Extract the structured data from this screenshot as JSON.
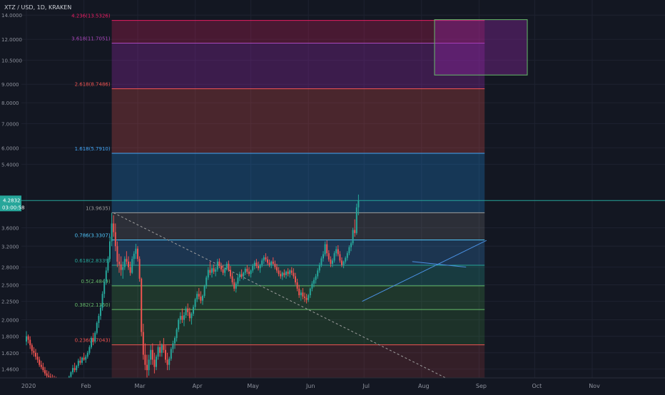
{
  "header": {
    "symbol": "XTZ / USD, 1D, KRAKEN"
  },
  "colors": {
    "background": "#131722",
    "grid": "#1e2230",
    "axis_text": "#8e929d",
    "up": "#26a69a",
    "down": "#ef5350",
    "price_line": "#26a69a"
  },
  "price_badge": {
    "price": "4.2832",
    "countdown": "03:00:58"
  },
  "chart_data": {
    "type": "candlestick",
    "scale": "log",
    "ylim": [
      1.38,
      14.6
    ],
    "y_ticks": [
      "14.0000",
      "12.0000",
      "10.5000",
      "9.0000",
      "8.0000",
      "7.0000",
      "6.0000",
      "5.4000",
      "3.6000",
      "3.2000",
      "2.8000",
      "2.5000",
      "2.2500",
      "2.0000",
      "1.8000",
      "1.6200",
      "1.4600"
    ],
    "x_labels": [
      {
        "label": "2020",
        "day": 0
      },
      {
        "label": "Feb",
        "day": 31
      },
      {
        "label": "Mar",
        "day": 60
      },
      {
        "label": "Apr",
        "day": 91
      },
      {
        "label": "May",
        "day": 121
      },
      {
        "label": "Jun",
        "day": 152
      },
      {
        "label": "Jul",
        "day": 182
      },
      {
        "label": "Aug",
        "day": 213
      },
      {
        "label": "Sep",
        "day": 244
      },
      {
        "label": "Oct",
        "day": 274
      },
      {
        "label": "Nov",
        "day": 305
      }
    ],
    "current_price": 4.2832,
    "fibonacci": {
      "levels": [
        {
          "label": "0.236(1.7043)",
          "ratio": 0.236,
          "price": 1.7043,
          "color": "#ef5350"
        },
        {
          "label": "0.382(2.1360)",
          "ratio": 0.382,
          "price": 2.136,
          "color": "#66bb6a"
        },
        {
          "label": "0.5(2.4849)",
          "ratio": 0.5,
          "price": 2.4849,
          "color": "#66bb6a"
        },
        {
          "label": "0.618(2.8339)",
          "ratio": 0.618,
          "price": 2.8339,
          "color": "#26a69a"
        },
        {
          "label": "0.786(3.3307)",
          "ratio": 0.786,
          "price": 3.3307,
          "color": "#4fc3f7"
        },
        {
          "label": "1(3.9635)",
          "ratio": 1,
          "price": 3.9635,
          "color": "#9e9e9e"
        },
        {
          "label": "1.618(5.7910)",
          "ratio": 1.618,
          "price": 5.791,
          "color": "#42a5f5"
        },
        {
          "label": "2.618(8.7486)",
          "ratio": 2.618,
          "price": 8.7486,
          "color": "#ef5350"
        },
        {
          "label": "3.618(11.7051)",
          "ratio": 3.618,
          "price": 11.7051,
          "color": "#ab47bc"
        },
        {
          "label": "4.236(13.5326)",
          "ratio": 4.236,
          "price": 13.5326,
          "color": "#e91e63"
        }
      ],
      "start_day": 46,
      "end_day": 247
    },
    "target_box": {
      "day_start": 220,
      "day_end": 270,
      "price_top": 13.6,
      "price_bottom": 9.55
    },
    "trendlines": [
      {
        "from": [
          47,
          3.96
        ],
        "to": [
          226,
          1.38
        ],
        "style": "dashed"
      },
      {
        "from": [
          181,
          2.25
        ],
        "to": [
          248,
          3.32
        ],
        "style": "solid"
      },
      {
        "from": [
          208,
          2.9
        ],
        "to": [
          237,
          2.8
        ],
        "style": "solid"
      }
    ],
    "candles": [
      [
        1.74,
        1.86,
        1.7,
        1.8
      ],
      [
        1.8,
        1.82,
        1.72,
        1.76
      ],
      [
        1.76,
        1.8,
        1.66,
        1.7
      ],
      [
        1.7,
        1.72,
        1.6,
        1.64
      ],
      [
        1.64,
        1.68,
        1.58,
        1.62
      ],
      [
        1.62,
        1.66,
        1.55,
        1.58
      ],
      [
        1.58,
        1.62,
        1.52,
        1.55
      ],
      [
        1.55,
        1.58,
        1.48,
        1.5
      ],
      [
        1.5,
        1.54,
        1.46,
        1.48
      ],
      [
        1.48,
        1.52,
        1.43,
        1.45
      ],
      [
        1.45,
        1.48,
        1.4,
        1.42
      ],
      [
        1.42,
        1.45,
        1.38,
        1.4
      ],
      [
        1.4,
        1.44,
        1.36,
        1.39
      ],
      [
        1.39,
        1.42,
        1.36,
        1.38
      ],
      [
        1.38,
        1.41,
        1.35,
        1.37
      ],
      [
        1.37,
        1.4,
        1.34,
        1.36
      ],
      [
        1.36,
        1.39,
        1.33,
        1.35
      ],
      [
        1.35,
        1.38,
        1.33,
        1.34
      ],
      [
        1.34,
        1.37,
        1.32,
        1.35
      ],
      [
        1.35,
        1.38,
        1.32,
        1.33
      ],
      [
        1.33,
        1.36,
        1.31,
        1.34
      ],
      [
        1.34,
        1.37,
        1.32,
        1.35
      ],
      [
        1.35,
        1.38,
        1.33,
        1.34
      ],
      [
        1.34,
        1.4,
        1.33,
        1.39
      ],
      [
        1.39,
        1.44,
        1.37,
        1.43
      ],
      [
        1.43,
        1.5,
        1.41,
        1.47
      ],
      [
        1.47,
        1.52,
        1.43,
        1.45
      ],
      [
        1.45,
        1.5,
        1.43,
        1.49
      ],
      [
        1.49,
        1.56,
        1.47,
        1.54
      ],
      [
        1.54,
        1.58,
        1.5,
        1.52
      ],
      [
        1.52,
        1.58,
        1.5,
        1.57
      ],
      [
        1.57,
        1.62,
        1.54,
        1.55
      ],
      [
        1.55,
        1.6,
        1.52,
        1.58
      ],
      [
        1.58,
        1.64,
        1.56,
        1.62
      ],
      [
        1.62,
        1.7,
        1.6,
        1.68
      ],
      [
        1.68,
        1.8,
        1.66,
        1.78
      ],
      [
        1.78,
        1.84,
        1.7,
        1.74
      ],
      [
        1.74,
        1.86,
        1.72,
        1.84
      ],
      [
        1.84,
        1.98,
        1.82,
        1.96
      ],
      [
        1.96,
        2.08,
        1.9,
        2.05
      ],
      [
        2.05,
        2.2,
        2.0,
        2.16
      ],
      [
        2.16,
        2.4,
        2.12,
        2.36
      ],
      [
        2.36,
        2.6,
        2.3,
        2.55
      ],
      [
        2.55,
        2.8,
        2.5,
        2.74
      ],
      [
        2.74,
        3.0,
        2.7,
        2.95
      ],
      [
        2.95,
        3.4,
        2.9,
        3.3
      ],
      [
        3.3,
        3.96,
        3.2,
        3.7
      ],
      [
        3.7,
        3.9,
        3.4,
        3.5
      ],
      [
        3.5,
        3.7,
        3.1,
        3.2
      ],
      [
        3.2,
        3.3,
        2.8,
        2.9
      ],
      [
        2.9,
        3.05,
        2.7,
        2.85
      ],
      [
        2.85,
        3.0,
        2.65,
        2.75
      ],
      [
        2.75,
        2.9,
        2.6,
        2.8
      ],
      [
        2.8,
        3.0,
        2.75,
        2.95
      ],
      [
        2.95,
        3.1,
        2.85,
        2.9
      ],
      [
        2.9,
        3.0,
        2.75,
        2.8
      ],
      [
        2.8,
        2.9,
        2.65,
        2.7
      ],
      [
        2.7,
        3.0,
        2.68,
        2.95
      ],
      [
        2.95,
        3.1,
        2.85,
        3.05
      ],
      [
        3.05,
        3.25,
        2.95,
        3.15
      ],
      [
        3.15,
        3.2,
        2.9,
        2.95
      ],
      [
        2.95,
        3.0,
        2.55,
        2.6
      ],
      [
        2.6,
        2.62,
        1.8,
        1.85
      ],
      [
        1.85,
        1.95,
        1.55,
        1.6
      ],
      [
        1.6,
        1.72,
        1.45,
        1.5
      ],
      [
        1.5,
        1.6,
        1.35,
        1.45
      ],
      [
        1.45,
        1.6,
        1.4,
        1.55
      ],
      [
        1.55,
        1.7,
        1.5,
        1.65
      ],
      [
        1.65,
        1.72,
        1.5,
        1.55
      ],
      [
        1.55,
        1.62,
        1.42,
        1.48
      ],
      [
        1.48,
        1.6,
        1.45,
        1.58
      ],
      [
        1.58,
        1.7,
        1.55,
        1.68
      ],
      [
        1.68,
        1.75,
        1.58,
        1.62
      ],
      [
        1.62,
        1.72,
        1.58,
        1.7
      ],
      [
        1.7,
        1.78,
        1.62,
        1.65
      ],
      [
        1.65,
        1.7,
        1.52,
        1.55
      ],
      [
        1.55,
        1.62,
        1.45,
        1.5
      ],
      [
        1.5,
        1.58,
        1.45,
        1.56
      ],
      [
        1.56,
        1.68,
        1.54,
        1.66
      ],
      [
        1.66,
        1.75,
        1.62,
        1.72
      ],
      [
        1.72,
        1.8,
        1.66,
        1.78
      ],
      [
        1.78,
        1.9,
        1.74,
        1.88
      ],
      [
        1.88,
        2.02,
        1.85,
        2.0
      ],
      [
        2.0,
        2.1,
        1.95,
        2.05
      ],
      [
        2.05,
        2.15,
        1.96,
        2.0
      ],
      [
        2.0,
        2.1,
        1.92,
        2.06
      ],
      [
        2.06,
        2.18,
        2.02,
        2.15
      ],
      [
        2.15,
        2.22,
        2.05,
        2.1
      ],
      [
        2.1,
        2.16,
        1.98,
        2.02
      ],
      [
        2.02,
        2.1,
        1.94,
        2.08
      ],
      [
        2.08,
        2.2,
        2.05,
        2.17
      ],
      [
        2.17,
        2.3,
        2.14,
        2.28
      ],
      [
        2.28,
        2.4,
        2.24,
        2.36
      ],
      [
        2.36,
        2.45,
        2.28,
        2.32
      ],
      [
        2.32,
        2.4,
        2.22,
        2.26
      ],
      [
        2.26,
        2.35,
        2.2,
        2.33
      ],
      [
        2.33,
        2.5,
        2.3,
        2.48
      ],
      [
        2.48,
        2.65,
        2.44,
        2.62
      ],
      [
        2.62,
        2.8,
        2.58,
        2.75
      ],
      [
        2.75,
        2.9,
        2.66,
        2.7
      ],
      [
        2.7,
        2.82,
        2.62,
        2.78
      ],
      [
        2.78,
        2.85,
        2.68,
        2.72
      ],
      [
        2.72,
        2.8,
        2.64,
        2.76
      ],
      [
        2.76,
        2.95,
        2.72,
        2.9
      ],
      [
        2.9,
        2.96,
        2.78,
        2.82
      ],
      [
        2.82,
        2.88,
        2.72,
        2.76
      ],
      [
        2.76,
        2.84,
        2.66,
        2.7
      ],
      [
        2.7,
        2.8,
        2.64,
        2.78
      ],
      [
        2.78,
        2.9,
        2.74,
        2.86
      ],
      [
        2.86,
        2.92,
        2.72,
        2.75
      ],
      [
        2.75,
        2.82,
        2.6,
        2.64
      ],
      [
        2.64,
        2.7,
        2.5,
        2.54
      ],
      [
        2.54,
        2.6,
        2.4,
        2.44
      ],
      [
        2.44,
        2.55,
        2.38,
        2.52
      ],
      [
        2.52,
        2.66,
        2.48,
        2.62
      ],
      [
        2.62,
        2.72,
        2.56,
        2.68
      ],
      [
        2.68,
        2.76,
        2.6,
        2.64
      ],
      [
        2.64,
        2.72,
        2.58,
        2.7
      ],
      [
        2.7,
        2.8,
        2.66,
        2.77
      ],
      [
        2.77,
        2.84,
        2.68,
        2.72
      ],
      [
        2.72,
        2.8,
        2.64,
        2.68
      ],
      [
        2.68,
        2.76,
        2.62,
        2.74
      ],
      [
        2.74,
        2.86,
        2.7,
        2.82
      ],
      [
        2.82,
        2.92,
        2.76,
        2.88
      ],
      [
        2.88,
        2.95,
        2.78,
        2.82
      ],
      [
        2.82,
        2.9,
        2.74,
        2.78
      ],
      [
        2.78,
        2.86,
        2.7,
        2.84
      ],
      [
        2.84,
        2.96,
        2.8,
        2.92
      ],
      [
        2.92,
        3.02,
        2.86,
        2.98
      ],
      [
        2.98,
        3.06,
        2.9,
        2.94
      ],
      [
        2.94,
        3.0,
        2.84,
        2.88
      ],
      [
        2.88,
        2.94,
        2.8,
        2.84
      ],
      [
        2.84,
        2.92,
        2.78,
        2.9
      ],
      [
        2.9,
        2.98,
        2.84,
        2.86
      ],
      [
        2.86,
        2.92,
        2.76,
        2.8
      ],
      [
        2.8,
        2.86,
        2.7,
        2.74
      ],
      [
        2.74,
        2.8,
        2.64,
        2.68
      ],
      [
        2.68,
        2.74,
        2.6,
        2.64
      ],
      [
        2.64,
        2.72,
        2.58,
        2.7
      ],
      [
        2.7,
        2.76,
        2.62,
        2.66
      ],
      [
        2.66,
        2.74,
        2.6,
        2.72
      ],
      [
        2.72,
        2.78,
        2.64,
        2.68
      ],
      [
        2.68,
        2.76,
        2.62,
        2.74
      ],
      [
        2.74,
        2.8,
        2.66,
        2.7
      ],
      [
        2.7,
        2.78,
        2.6,
        2.64
      ],
      [
        2.64,
        2.7,
        2.5,
        2.54
      ],
      [
        2.54,
        2.6,
        2.4,
        2.44
      ],
      [
        2.44,
        2.5,
        2.3,
        2.34
      ],
      [
        2.34,
        2.42,
        2.26,
        2.38
      ],
      [
        2.38,
        2.45,
        2.28,
        2.32
      ],
      [
        2.32,
        2.38,
        2.24,
        2.3
      ],
      [
        2.3,
        2.36,
        2.22,
        2.27
      ],
      [
        2.27,
        2.36,
        2.24,
        2.34
      ],
      [
        2.34,
        2.46,
        2.3,
        2.44
      ],
      [
        2.44,
        2.56,
        2.4,
        2.52
      ],
      [
        2.52,
        2.62,
        2.46,
        2.58
      ],
      [
        2.58,
        2.68,
        2.52,
        2.64
      ],
      [
        2.64,
        2.78,
        2.6,
        2.74
      ],
      [
        2.74,
        2.88,
        2.7,
        2.84
      ],
      [
        2.84,
        3.0,
        2.8,
        2.96
      ],
      [
        2.96,
        3.1,
        2.9,
        3.04
      ],
      [
        3.04,
        3.3,
        3.0,
        3.24
      ],
      [
        3.24,
        3.32,
        3.0,
        3.06
      ],
      [
        3.06,
        3.12,
        2.9,
        2.94
      ],
      [
        2.94,
        3.0,
        2.8,
        2.86
      ],
      [
        2.86,
        2.96,
        2.8,
        2.92
      ],
      [
        2.92,
        3.1,
        2.88,
        3.06
      ],
      [
        3.06,
        3.2,
        3.0,
        3.14
      ],
      [
        3.14,
        3.22,
        3.0,
        3.04
      ],
      [
        3.04,
        3.1,
        2.88,
        2.92
      ],
      [
        2.92,
        2.98,
        2.8,
        2.84
      ],
      [
        2.84,
        2.92,
        2.78,
        2.9
      ],
      [
        2.9,
        3.0,
        2.86,
        2.97
      ],
      [
        2.97,
        3.1,
        2.92,
        3.06
      ],
      [
        3.06,
        3.22,
        3.02,
        3.18
      ],
      [
        3.18,
        3.3,
        3.1,
        3.26
      ],
      [
        3.26,
        3.6,
        3.22,
        3.55
      ],
      [
        3.55,
        3.8,
        3.4,
        3.48
      ],
      [
        3.48,
        4.2,
        3.44,
        4.1
      ],
      [
        4.1,
        4.45,
        3.9,
        4.28
      ]
    ]
  }
}
